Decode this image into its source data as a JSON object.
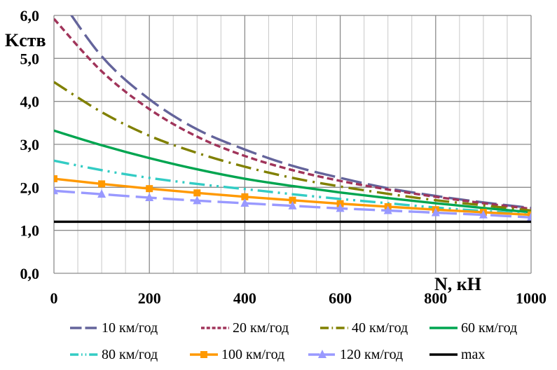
{
  "chart_data": {
    "type": "line",
    "title": "",
    "xlabel": "N, кН",
    "ylabel": "Kств",
    "xlim": [
      0,
      1000
    ],
    "ylim": [
      0,
      6
    ],
    "x_ticks": [
      0,
      200,
      400,
      600,
      800,
      1000
    ],
    "x_tick_labels": [
      "0",
      "200",
      "400",
      "600",
      "800",
      "1000"
    ],
    "y_ticks": [
      0,
      1,
      2,
      3,
      4,
      5,
      6
    ],
    "y_tick_labels": [
      "0,0",
      "1,0",
      "2,0",
      "3,0",
      "4,0",
      "5,0",
      "6,0"
    ],
    "grid": true,
    "legend_position": "bottom",
    "x": [
      0,
      100,
      200,
      300,
      400,
      500,
      600,
      700,
      800,
      900,
      1000
    ],
    "series": [
      {
        "name": "10 км/год",
        "color": "#64649b",
        "dash": "long-dash",
        "marker": "none",
        "values": [
          6.6,
          5.05,
          4.05,
          3.35,
          2.88,
          2.5,
          2.22,
          1.98,
          1.8,
          1.65,
          1.52
        ]
      },
      {
        "name": "20 км/год",
        "color": "#a0345a",
        "dash": "short-dash",
        "marker": "none",
        "values": [
          5.92,
          4.7,
          3.82,
          3.18,
          2.73,
          2.4,
          2.15,
          1.95,
          1.78,
          1.63,
          1.5
        ]
      },
      {
        "name": "40 км/год",
        "color": "#808000",
        "dash": "dash-dot",
        "marker": "none",
        "values": [
          4.45,
          3.75,
          3.2,
          2.8,
          2.48,
          2.22,
          2.02,
          1.85,
          1.7,
          1.58,
          1.46
        ]
      },
      {
        "name": "60 км/год",
        "color": "#00a550",
        "dash": "solid",
        "marker": "none",
        "values": [
          3.32,
          2.98,
          2.68,
          2.42,
          2.2,
          2.03,
          1.88,
          1.75,
          1.63,
          1.52,
          1.42
        ]
      },
      {
        "name": "80 км/год",
        "color": "#33ccc4",
        "dash": "dash-dot-dot",
        "marker": "none",
        "values": [
          2.62,
          2.4,
          2.22,
          2.08,
          1.96,
          1.84,
          1.73,
          1.63,
          1.53,
          1.45,
          1.38
        ]
      },
      {
        "name": "100 км/год",
        "color": "#ff9900",
        "dash": "solid",
        "marker": "square",
        "values": [
          2.2,
          2.08,
          1.97,
          1.87,
          1.78,
          1.7,
          1.62,
          1.55,
          1.48,
          1.42,
          1.36
        ]
      },
      {
        "name": "120 км/год",
        "color": "#9999ff",
        "dash": "long-dash",
        "marker": "triangle",
        "values": [
          1.92,
          1.84,
          1.76,
          1.69,
          1.63,
          1.57,
          1.51,
          1.46,
          1.41,
          1.36,
          1.3
        ]
      },
      {
        "name": "max",
        "color": "#000000",
        "dash": "solid",
        "marker": "none",
        "values": [
          1.2,
          1.2,
          1.2,
          1.2,
          1.2,
          1.2,
          1.2,
          1.2,
          1.2,
          1.2,
          1.2
        ]
      }
    ]
  }
}
